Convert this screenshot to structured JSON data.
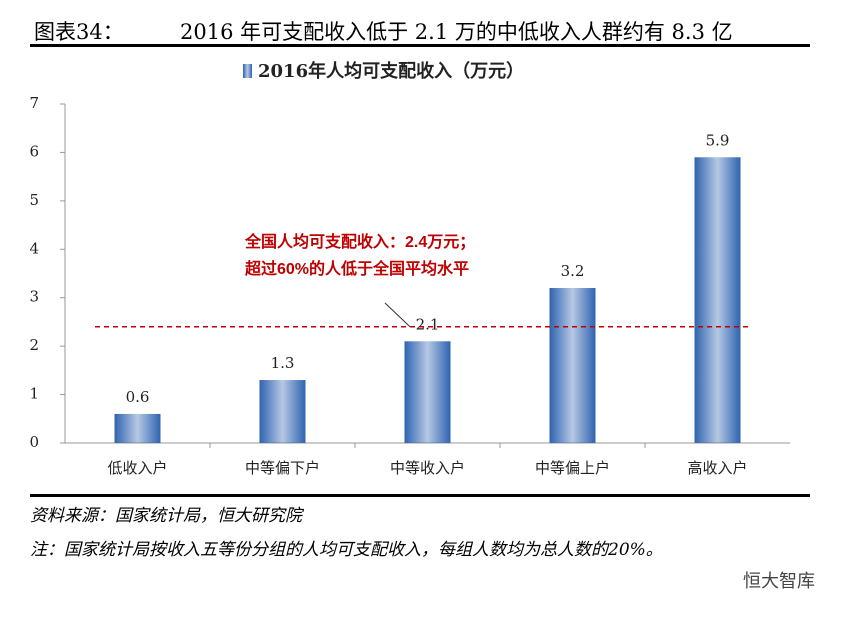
{
  "header": {
    "label": "图表34：",
    "title": "2016 年可支配收入低于 2.1 万的中低收入人群约有 8.3 亿"
  },
  "chart_data": {
    "type": "bar",
    "categories": [
      "低收入户",
      "中等偏下户",
      "中等收入户",
      "中等偏上户",
      "高收入户"
    ],
    "series": [
      {
        "name": "2016年人均可支配收入（万元）",
        "color": "#2e63b0",
        "values": [
          0.6,
          1.3,
          2.1,
          3.2,
          5.9
        ]
      }
    ],
    "ylim": [
      0,
      7
    ],
    "yticks": [
      0,
      1,
      2,
      3,
      4,
      5,
      6,
      7
    ],
    "reference_line": {
      "value": 2.4,
      "color": "#c00000",
      "annotation": [
        "全国人均可支配收入：2.4万元；",
        "超过60%的人低于全国平均水平"
      ]
    }
  },
  "footer": {
    "source": "资料来源：国家统计局，恒大研究院",
    "note": "注：国家统计局按收入五等份分组的人均可支配收入，每组人数均为总人数的20%。",
    "watermark": "恒大智库"
  }
}
